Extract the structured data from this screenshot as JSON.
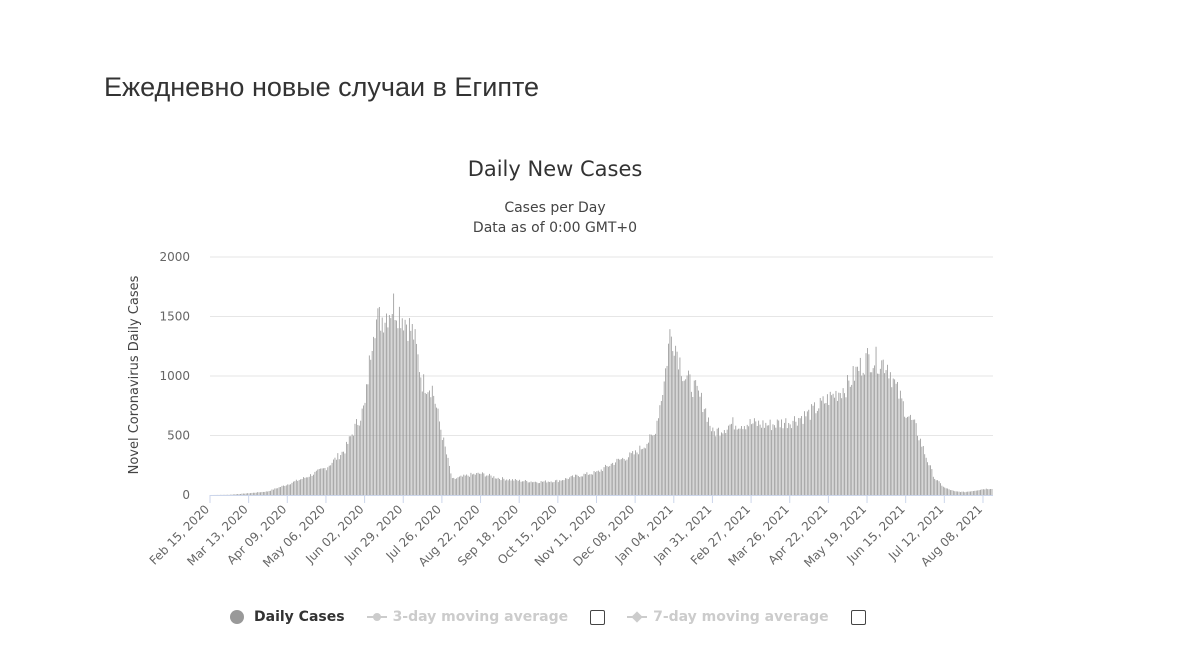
{
  "page": {
    "heading": "Ежедневно новые случаи в Египте"
  },
  "legend": {
    "daily_cases": "Daily Cases",
    "ma3": "3-day moving average",
    "ma7": "7-day moving average"
  },
  "chart_data": {
    "type": "bar",
    "title": "Daily New Cases",
    "subtitle_lines": [
      "Cases per Day",
      "Data as of 0:00 GMT+0"
    ],
    "xlabel": "",
    "ylabel": "Novel Coronavirus Daily Cases",
    "ylim": [
      0,
      2000
    ],
    "yticks": [
      0,
      500,
      1000,
      1500,
      2000
    ],
    "grid": true,
    "legend_position": "bottom",
    "colors": {
      "bars": "#999999",
      "grid": "#e6e6e6",
      "axis": "#ccd6eb",
      "text": "#333333",
      "tick_text": "#666666",
      "inactive": "#cccccc"
    },
    "categories": [
      "Feb 15, 2020",
      "Mar 13, 2020",
      "Apr 09, 2020",
      "May 06, 2020",
      "Jun 02, 2020",
      "Jun 29, 2020",
      "Jul 26, 2020",
      "Aug 22, 2020",
      "Sep 18, 2020",
      "Oct 15, 2020",
      "Nov 11, 2020",
      "Dec 08, 2020",
      "Jan 04, 2021",
      "Jan 31, 2021",
      "Feb 27, 2021",
      "Mar 26, 2021",
      "Apr 22, 2021",
      "May 19, 2021",
      "Jun 15, 2021",
      "Jul 12, 2021",
      "Aug 08, 2021"
    ],
    "series": [
      {
        "name": "Daily Cases",
        "x": [
          "Feb 15, 2020",
          "Feb 28, 2020",
          "Mar 13, 2020",
          "Mar 26, 2020",
          "Apr 09, 2020",
          "Apr 22, 2020",
          "May 06, 2020",
          "May 19, 2020",
          "Jun 02, 2020",
          "Jun 08, 2020",
          "Jun 15, 2020",
          "Jun 22, 2020",
          "Jun 29, 2020",
          "Jul 06, 2020",
          "Jul 12, 2020",
          "Jul 19, 2020",
          "Jul 26, 2020",
          "Aug 02, 2020",
          "Aug 08, 2020",
          "Aug 15, 2020",
          "Aug 22, 2020",
          "Sep 04, 2020",
          "Sep 18, 2020",
          "Oct 01, 2020",
          "Oct 15, 2020",
          "Oct 28, 2020",
          "Nov 11, 2020",
          "Nov 24, 2020",
          "Dec 08, 2020",
          "Dec 21, 2020",
          "Dec 28, 2020",
          "Jan 01, 2021",
          "Jan 04, 2021",
          "Jan 11, 2021",
          "Jan 18, 2021",
          "Jan 25, 2021",
          "Jan 31, 2021",
          "Feb 14, 2021",
          "Feb 27, 2021",
          "Mar 12, 2021",
          "Mar 26, 2021",
          "Apr 08, 2021",
          "Apr 22, 2021",
          "May 05, 2021",
          "May 12, 2021",
          "May 19, 2021",
          "May 26, 2021",
          "Jun 02, 2021",
          "Jun 08, 2021",
          "Jun 15, 2021",
          "Jun 22, 2021",
          "Jun 29, 2021",
          "Jul 05, 2021",
          "Jul 12, 2021",
          "Jul 19, 2021",
          "Jul 26, 2021",
          "Aug 01, 2021",
          "Aug 08, 2021",
          "Aug 14, 2021"
        ],
        "values": [
          0,
          2,
          15,
          30,
          90,
          150,
          230,
          380,
          750,
          1450,
          1500,
          1600,
          1500,
          1350,
          950,
          900,
          500,
          130,
          150,
          170,
          180,
          140,
          120,
          110,
          120,
          160,
          190,
          280,
          350,
          500,
          950,
          1350,
          1300,
          1000,
          900,
          750,
          520,
          600,
          600,
          590,
          620,
          680,
          810,
          920,
          1050,
          1150,
          1130,
          1100,
          900,
          700,
          560,
          320,
          140,
          60,
          30,
          25,
          35,
          50,
          55
        ]
      },
      {
        "name": "3-day moving average",
        "visible": false
      },
      {
        "name": "7-day moving average",
        "visible": false
      }
    ]
  }
}
